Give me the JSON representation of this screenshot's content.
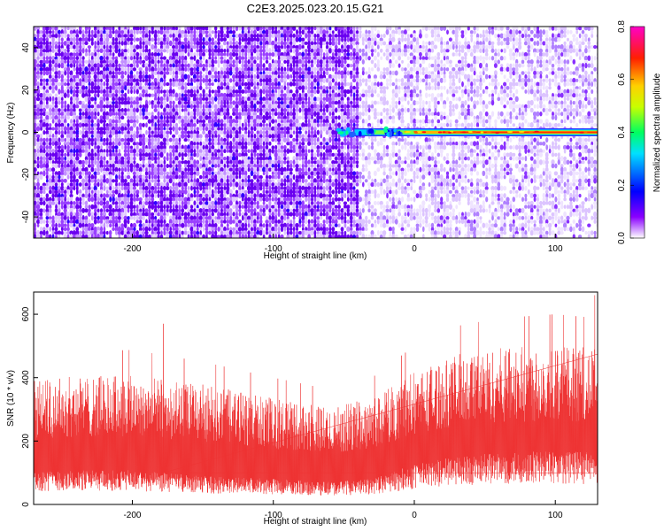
{
  "title": "C2E3.2025.023.20.15.G21",
  "chart_data": [
    {
      "type": "heatmap",
      "xlabel": "Height of straight line (km)",
      "ylabel": "Frequency (Hz)",
      "xlim": [
        -270,
        130
      ],
      "ylim": [
        -50,
        50
      ],
      "xticks": [
        -200,
        -100,
        0,
        100
      ],
      "yticks": [
        -40,
        -20,
        0,
        20,
        40
      ],
      "colorbar": {
        "label": "Normalized spectral amplitude",
        "range": [
          0.0,
          0.8
        ],
        "ticks": [
          "0.0",
          "0.2",
          "0.4",
          "0.6",
          "0.8"
        ]
      },
      "signal_band": {
        "frequency": 0,
        "x_start": -55,
        "x_end": 130
      }
    },
    {
      "type": "line",
      "xlabel": "Height of straight line (km)",
      "ylabel": "SNR (10 * v/v)",
      "xlim": [
        -270,
        130
      ],
      "ylim": [
        0,
        670
      ],
      "xticks": [
        -200,
        -100,
        0,
        100
      ],
      "yticks": [
        0,
        200,
        400,
        600
      ],
      "series": [
        {
          "color": "#ee3333",
          "envelope_x": [
            -270,
            -200,
            -150,
            -100,
            -60,
            -30,
            0,
            30,
            60,
            100,
            130
          ],
          "upper": [
            380,
            390,
            360,
            320,
            290,
            320,
            400,
            450,
            470,
            480,
            470
          ],
          "lower": [
            60,
            60,
            50,
            45,
            40,
            45,
            70,
            85,
            90,
            95,
            90
          ],
          "max": [
            [
              -178,
              570
            ],
            [
              128,
              660
            ]
          ]
        }
      ]
    }
  ]
}
